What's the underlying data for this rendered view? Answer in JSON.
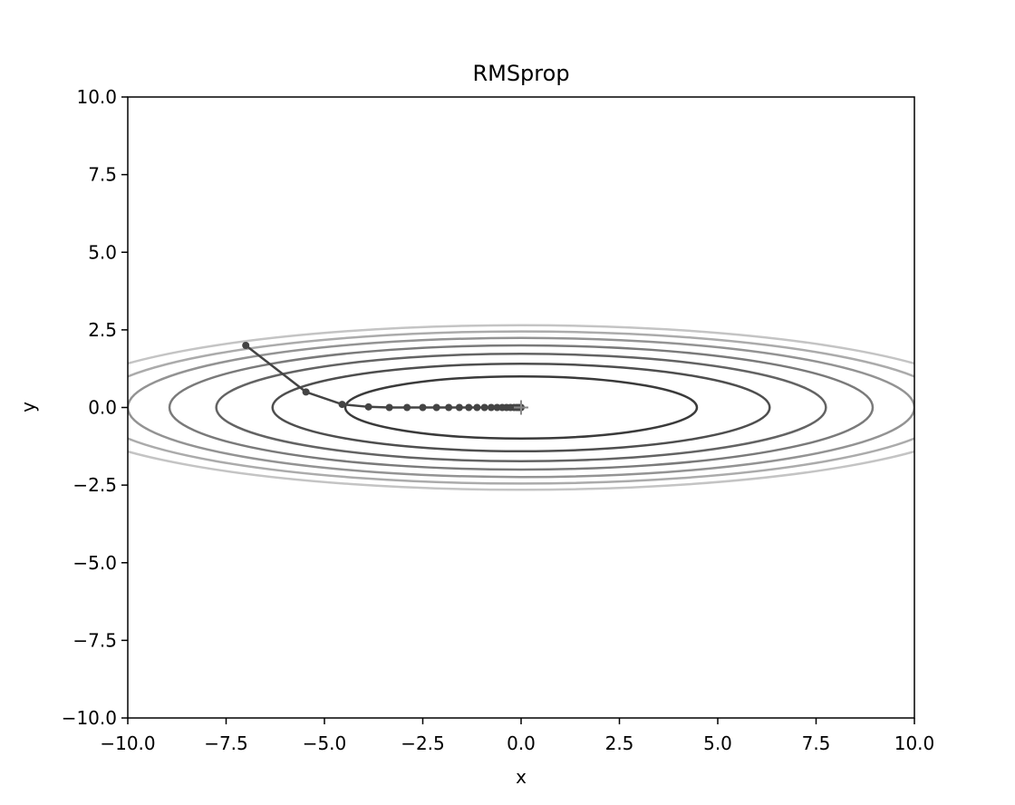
{
  "chart_data": {
    "type": "line",
    "title": "RMSprop",
    "xlabel": "x",
    "ylabel": "y",
    "xlim": [
      -10,
      10
    ],
    "ylim": [
      -10,
      10
    ],
    "grid": false,
    "x_ticks": [
      -10.0,
      -7.5,
      -5.0,
      -2.5,
      0.0,
      2.5,
      5.0,
      7.5,
      10.0
    ],
    "y_ticks": [
      -10.0,
      -7.5,
      -5.0,
      -2.5,
      0.0,
      2.5,
      5.0,
      7.5,
      10.0
    ],
    "x_tick_labels": [
      "−10.0",
      "−7.5",
      "−5.0",
      "−2.5",
      "0.0",
      "2.5",
      "5.0",
      "7.5",
      "10.0"
    ],
    "y_tick_labels": [
      "−10.0",
      "−7.5",
      "−5.0",
      "−2.5",
      "0.0",
      "2.5",
      "5.0",
      "7.5",
      "10.0"
    ],
    "contour_levels": [
      {
        "rx": 4.47,
        "ry": 1.0,
        "color": "#3a3a3a"
      },
      {
        "rx": 6.32,
        "ry": 1.41,
        "color": "#4e4e4e"
      },
      {
        "rx": 7.75,
        "ry": 1.73,
        "color": "#636363"
      },
      {
        "rx": 8.94,
        "ry": 2.0,
        "color": "#7a7a7a"
      },
      {
        "rx": 10.0,
        "ry": 2.24,
        "color": "#939393"
      },
      {
        "rx": 10.95,
        "ry": 2.45,
        "color": "#ababab"
      },
      {
        "rx": 11.83,
        "ry": 2.65,
        "color": "#c4c4c4"
      }
    ],
    "series": [
      {
        "x": [
          -7.0,
          -5.47,
          -4.55,
          -3.88,
          -3.35,
          -2.9,
          -2.5,
          -2.15,
          -1.84,
          -1.57,
          -1.33,
          -1.12,
          -0.93,
          -0.76,
          -0.61,
          -0.48,
          -0.37,
          -0.27,
          -0.18,
          -0.11,
          -0.05,
          0.0
        ],
        "y": [
          2.0,
          0.5,
          0.1,
          0.02,
          0.0,
          0.0,
          0.0,
          0.0,
          0.0,
          0.0,
          0.0,
          0.0,
          0.0,
          0.0,
          0.0,
          0.0,
          0.0,
          0.0,
          0.0,
          0.0,
          0.0,
          0.0
        ],
        "color": "#444444"
      }
    ],
    "minimum_marker": {
      "x": 0.0,
      "y": 0.0,
      "symbol": "+",
      "color": "#888888"
    }
  }
}
